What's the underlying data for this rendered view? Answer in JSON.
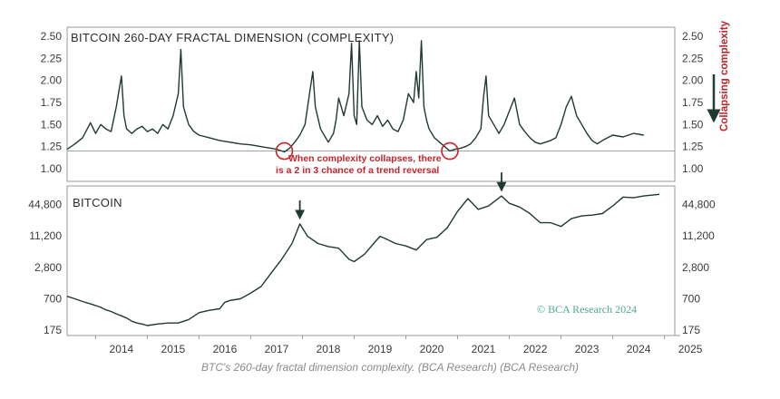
{
  "caption": "BTC's 260-day fractal dimension complexity. (BCA Research) (BCA Research)",
  "colors": {
    "line": "#1f3a2e",
    "annotation": "#c0262c",
    "watermark": "#4ea98f",
    "frame": "#9a9a9a"
  },
  "chart_data": [
    {
      "type": "line",
      "title": "BITCOIN 260-DAY FRACTAL DIMENSION (COMPLEXITY)",
      "y_ticks": [
        "2.50",
        "2.25",
        "2.00",
        "1.75",
        "1.50",
        "1.25",
        "1.00"
      ],
      "ylim": [
        1.0,
        2.5
      ],
      "reference_line": 1.2,
      "right_label": "Collapsing complexity",
      "annotation": [
        "When complexity collapses, there",
        "is a 2 in 3 chance of a trend reversal"
      ],
      "highlighted_points": [
        {
          "x": 2017.65,
          "y": 1.2
        },
        {
          "x": 2020.85,
          "y": 1.2
        }
      ],
      "series": [
        {
          "x": [
            2013.45,
            2013.6,
            2013.75,
            2013.9,
            2014.0,
            2014.1,
            2014.2,
            2014.3,
            2014.4,
            2014.5,
            2014.55,
            2014.6,
            2014.7,
            2014.8,
            2014.9,
            2015.0,
            2015.1,
            2015.2,
            2015.3,
            2015.4,
            2015.5,
            2015.6,
            2015.65,
            2015.7,
            2015.8,
            2015.9,
            2016.0,
            2016.2,
            2016.4,
            2016.6,
            2016.8,
            2017.0,
            2017.2,
            2017.4,
            2017.5,
            2017.6,
            2017.65,
            2017.75,
            2017.85,
            2017.95,
            2018.05,
            2018.15,
            2018.2,
            2018.25,
            2018.35,
            2018.45,
            2018.5,
            2018.6,
            2018.65,
            2018.7,
            2018.8,
            2018.9,
            2018.95,
            2019.0,
            2019.05,
            2019.1,
            2019.15,
            2019.25,
            2019.35,
            2019.45,
            2019.55,
            2019.65,
            2019.75,
            2019.85,
            2019.95,
            2020.05,
            2020.15,
            2020.2,
            2020.25,
            2020.3,
            2020.35,
            2020.4,
            2020.45,
            2020.55,
            2020.65,
            2020.75,
            2020.85,
            2020.95,
            2021.05,
            2021.15,
            2021.25,
            2021.35,
            2021.45,
            2021.5,
            2021.55,
            2021.6,
            2021.7,
            2021.8,
            2021.9,
            2022.0,
            2022.1,
            2022.2,
            2022.3,
            2022.4,
            2022.5,
            2022.6,
            2022.7,
            2022.8,
            2022.9,
            2023.0,
            2023.1,
            2023.2,
            2023.3,
            2023.4,
            2023.5,
            2023.6,
            2023.7,
            2023.8,
            2023.9,
            2024.0,
            2024.2,
            2024.4,
            2024.6
          ],
          "y": [
            1.22,
            1.28,
            1.35,
            1.52,
            1.4,
            1.5,
            1.45,
            1.42,
            1.7,
            2.05,
            1.6,
            1.45,
            1.4,
            1.45,
            1.48,
            1.42,
            1.45,
            1.4,
            1.5,
            1.45,
            1.6,
            1.85,
            2.35,
            1.7,
            1.5,
            1.42,
            1.38,
            1.35,
            1.32,
            1.3,
            1.28,
            1.27,
            1.25,
            1.23,
            1.22,
            1.2,
            1.19,
            1.23,
            1.3,
            1.38,
            1.5,
            1.9,
            2.1,
            1.7,
            1.45,
            1.35,
            1.3,
            1.4,
            1.55,
            1.8,
            1.6,
            1.85,
            2.42,
            1.6,
            1.5,
            2.45,
            1.7,
            1.55,
            1.5,
            1.6,
            1.48,
            1.55,
            1.45,
            1.42,
            1.55,
            1.85,
            1.75,
            2.1,
            1.8,
            2.45,
            1.7,
            1.55,
            1.45,
            1.35,
            1.3,
            1.25,
            1.2,
            1.22,
            1.23,
            1.25,
            1.28,
            1.35,
            1.45,
            1.8,
            2.05,
            1.6,
            1.5,
            1.4,
            1.5,
            1.65,
            1.8,
            1.5,
            1.42,
            1.35,
            1.3,
            1.28,
            1.3,
            1.32,
            1.35,
            1.5,
            1.7,
            1.82,
            1.6,
            1.5,
            1.4,
            1.32,
            1.28,
            1.32,
            1.35,
            1.38,
            1.36,
            1.4,
            1.38
          ]
        }
      ]
    },
    {
      "type": "line",
      "title": "BITCOIN",
      "y_ticks": [
        "44,800",
        "11,200",
        "2,800",
        "700",
        "175"
      ],
      "y_tick_values": [
        44800,
        11200,
        2800,
        700,
        175
      ],
      "y_scale": "log",
      "ylim": [
        150,
        90000
      ],
      "x_ticks": [
        "2014",
        "2015",
        "2016",
        "2017",
        "2018",
        "2019",
        "2020",
        "2021",
        "2022",
        "2023",
        "2024",
        "2025"
      ],
      "xlim": [
        2013.45,
        2025.2
      ],
      "watermark": "© BCA Research 2024",
      "marked_points": [
        {
          "x": 2017.95,
          "y": 19000
        },
        {
          "x": 2021.85,
          "y": 65000
        }
      ],
      "series": [
        {
          "x": [
            2013.45,
            2013.6,
            2013.75,
            2013.9,
            2014.0,
            2014.1,
            2014.2,
            2014.3,
            2014.4,
            2014.5,
            2014.6,
            2014.7,
            2014.8,
            2014.9,
            2015.0,
            2015.2,
            2015.4,
            2015.6,
            2015.8,
            2016.0,
            2016.2,
            2016.4,
            2016.5,
            2016.6,
            2016.8,
            2017.0,
            2017.2,
            2017.4,
            2017.6,
            2017.8,
            2017.95,
            2018.1,
            2018.3,
            2018.5,
            2018.7,
            2018.9,
            2019.0,
            2019.2,
            2019.4,
            2019.5,
            2019.6,
            2019.8,
            2020.0,
            2020.2,
            2020.4,
            2020.6,
            2020.8,
            2021.0,
            2021.2,
            2021.4,
            2021.6,
            2021.85,
            2022.0,
            2022.2,
            2022.4,
            2022.6,
            2022.8,
            2023.0,
            2023.2,
            2023.4,
            2023.6,
            2023.8,
            2024.0,
            2024.2,
            2024.4,
            2024.6,
            2024.9
          ],
          "y": [
            780,
            700,
            620,
            560,
            520,
            480,
            430,
            400,
            360,
            330,
            300,
            260,
            240,
            230,
            215,
            230,
            240,
            240,
            280,
            380,
            420,
            450,
            600,
            650,
            700,
            900,
            1200,
            2200,
            4000,
            8000,
            19000,
            11000,
            8000,
            7000,
            6500,
            4000,
            3600,
            5000,
            8500,
            11000,
            10000,
            8000,
            7200,
            6000,
            9500,
            10500,
            16000,
            33000,
            58000,
            36000,
            42000,
            65000,
            47000,
            40000,
            30000,
            20000,
            20000,
            17000,
            24000,
            27000,
            28000,
            30000,
            42000,
            62000,
            60000,
            65000,
            70000
          ]
        }
      ]
    }
  ]
}
